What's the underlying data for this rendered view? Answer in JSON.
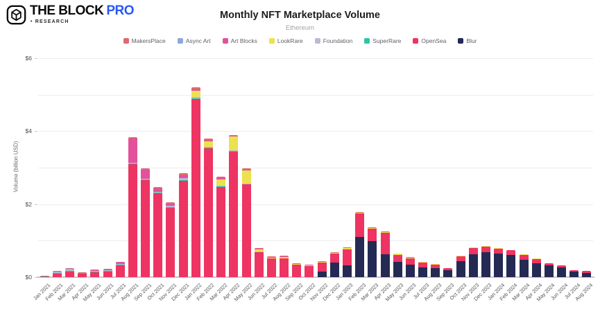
{
  "header": {
    "logo_text": "THE BLOCK",
    "logo_pro": "PRO",
    "logo_sub": "• RESEARCH",
    "logo_pro_color": "#2658f5"
  },
  "chart_data": {
    "type": "bar",
    "stacked": true,
    "title": "Monthly NFT Marketplace Volume",
    "subtitle": "Ethereum",
    "xlabel": "",
    "ylabel": "Volume (billion USD)",
    "ylim": [
      0,
      6
    ],
    "ytick_values": [
      0,
      2,
      4,
      6
    ],
    "ytick_labels": [
      "$0",
      "$2",
      "$4",
      "$6"
    ],
    "grid_values": [
      1,
      2,
      3,
      4,
      5,
      6
    ],
    "grid": true,
    "legend_position": "top",
    "stack_order_bottom_to_top": [
      "Blur",
      "OpenSea",
      "SuperRare",
      "Foundation",
      "LookRare",
      "Art Blocks",
      "Async Art",
      "MakersPlace"
    ],
    "categories": [
      "Jan 2021",
      "Feb 2021",
      "Mar 2021",
      "Apr 2021",
      "May 2021",
      "Jun 2021",
      "Jul 2021",
      "Aug 2021",
      "Sep 2021",
      "Oct 2021",
      "Nov 2021",
      "Dec 2021",
      "Jan 2022",
      "Feb 2022",
      "Mar 2022",
      "Apr 2022",
      "May 2022",
      "Jun 2022",
      "Jul 2022",
      "Aug 2022",
      "Sep 2022",
      "Oct 2022",
      "Nov 2022",
      "Dec 2022",
      "Jan 2023",
      "Feb 2023",
      "Mar 2023",
      "Apr 2023",
      "May 2023",
      "Jun 2023",
      "Jul 2023",
      "Aug 2023",
      "Sep 2023",
      "Oct 2023",
      "Nov 2023",
      "Dec 2023",
      "Jan 2024",
      "Feb 2024",
      "Mar 2024",
      "Apr 2024",
      "May 2024",
      "Jun 2024",
      "Jul 2024",
      "Aug 2024"
    ],
    "series": [
      {
        "name": "MakersPlace",
        "color": "#dd6a6e",
        "values": [
          0.01,
          0.02,
          0.02,
          0.01,
          0.02,
          0.01,
          0.01,
          0.03,
          0.03,
          0.02,
          0.03,
          0.05,
          0.06,
          0.05,
          0.04,
          0.03,
          0.03,
          0.02,
          0.01,
          0.01,
          0.01,
          0.01,
          0.01,
          0.01,
          0.02,
          0.02,
          0.01,
          0.01,
          0.01,
          0.01,
          0.01,
          0,
          0,
          0,
          0,
          0,
          0,
          0,
          0,
          0,
          0,
          0,
          0,
          0
        ]
      },
      {
        "name": "Async Art",
        "color": "#8ea8de",
        "values": [
          0,
          0.01,
          0.02,
          0,
          0,
          0,
          0,
          0.01,
          0,
          0,
          0,
          0,
          0,
          0,
          0,
          0,
          0,
          0,
          0,
          0,
          0,
          0,
          0,
          0,
          0,
          0,
          0,
          0,
          0,
          0,
          0,
          0,
          0,
          0,
          0,
          0,
          0,
          0,
          0,
          0,
          0,
          0,
          0,
          0
        ]
      },
      {
        "name": "Art Blocks",
        "color": "#e3519c",
        "values": [
          0,
          0.01,
          0.01,
          0,
          0.01,
          0.02,
          0.05,
          0.65,
          0.25,
          0.1,
          0.06,
          0.07,
          0.04,
          0.03,
          0.03,
          0.02,
          0.03,
          0.02,
          0.02,
          0.02,
          0.01,
          0.01,
          0,
          0,
          0,
          0,
          0,
          0,
          0,
          0,
          0,
          0,
          0,
          0,
          0,
          0,
          0,
          0,
          0,
          0,
          0,
          0,
          0,
          0
        ]
      },
      {
        "name": "LookRare",
        "color": "#ece14f",
        "values": [
          0,
          0,
          0,
          0,
          0,
          0,
          0,
          0,
          0,
          0,
          0,
          0,
          0.17,
          0.15,
          0.18,
          0.38,
          0.35,
          0.06,
          0.02,
          0.03,
          0.02,
          0.02,
          0.02,
          0.02,
          0.04,
          0.03,
          0.02,
          0.03,
          0.03,
          0.03,
          0.01,
          0.01,
          0.01,
          0.01,
          0.01,
          0.01,
          0.01,
          0.01,
          0.01,
          0.01,
          0,
          0,
          0,
          0
        ]
      },
      {
        "name": "Foundation",
        "color": "#bcb9d6",
        "values": [
          0,
          0.01,
          0.02,
          0.01,
          0.02,
          0.02,
          0.02,
          0.02,
          0.03,
          0.03,
          0.04,
          0.06,
          0.03,
          0.02,
          0.02,
          0.02,
          0.02,
          0.01,
          0,
          0,
          0,
          0,
          0,
          0,
          0,
          0,
          0,
          0,
          0,
          0,
          0,
          0,
          0,
          0,
          0,
          0,
          0,
          0,
          0,
          0,
          0,
          0,
          0,
          0
        ]
      },
      {
        "name": "SuperRare",
        "color": "#2fc4a2",
        "values": [
          0.01,
          0.02,
          0.03,
          0.02,
          0.02,
          0.02,
          0.02,
          0.02,
          0.02,
          0.02,
          0.02,
          0.02,
          0.02,
          0.01,
          0.01,
          0.01,
          0.01,
          0.01,
          0,
          0,
          0,
          0,
          0,
          0,
          0,
          0,
          0,
          0,
          0,
          0,
          0,
          0,
          0,
          0,
          0,
          0,
          0,
          0,
          0,
          0,
          0,
          0,
          0,
          0
        ]
      },
      {
        "name": "OpenSea",
        "color": "#ee3462",
        "values": [
          0.02,
          0.1,
          0.15,
          0.09,
          0.14,
          0.15,
          0.32,
          3.1,
          2.65,
          2.29,
          1.9,
          2.64,
          4.88,
          3.54,
          2.47,
          3.44,
          2.54,
          0.68,
          0.52,
          0.52,
          0.35,
          0.31,
          0.24,
          0.26,
          0.44,
          0.64,
          0.34,
          0.58,
          0.2,
          0.17,
          0.13,
          0.1,
          0.05,
          0.14,
          0.17,
          0.16,
          0.14,
          0.14,
          0.13,
          0.12,
          0.05,
          0.05,
          0.04,
          0.05
        ]
      },
      {
        "name": "Blur",
        "color": "#252a54",
        "values": [
          0,
          0,
          0,
          0,
          0,
          0,
          0,
          0,
          0,
          0,
          0,
          0,
          0,
          0,
          0,
          0,
          0,
          0,
          0,
          0,
          0,
          0,
          0.16,
          0.39,
          0.32,
          1.1,
          0.99,
          0.63,
          0.41,
          0.34,
          0.27,
          0.25,
          0.19,
          0.43,
          0.63,
          0.68,
          0.64,
          0.6,
          0.48,
          0.38,
          0.33,
          0.27,
          0.15,
          0.12
        ]
      }
    ]
  }
}
